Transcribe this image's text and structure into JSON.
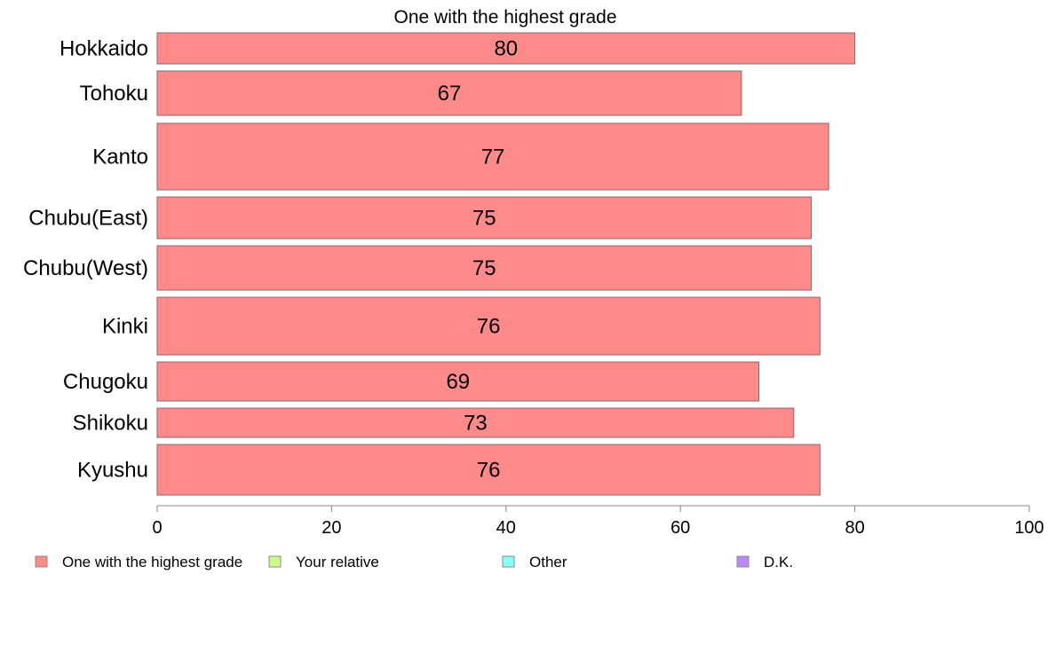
{
  "chart_data": {
    "type": "bar",
    "orientation": "horizontal",
    "title": "One with the highest grade",
    "categories": [
      "Hokkaido",
      "Tohoku",
      "Kanto",
      "Chubu(East)",
      "Chubu(West)",
      "Kinki",
      "Chugoku",
      "Shikoku",
      "Kyushu"
    ],
    "series": [
      {
        "name": "One with the highest grade",
        "values": [
          80,
          67,
          77,
          75,
          75,
          76,
          69,
          73,
          76
        ],
        "color": "#ff8a8a"
      },
      {
        "name": "Your relative",
        "values": [
          0,
          0,
          0,
          0,
          0,
          0,
          0,
          0,
          0
        ],
        "color": "#ccff88"
      },
      {
        "name": "Other",
        "values": [
          0,
          0,
          0,
          0,
          0,
          0,
          0,
          0,
          0
        ],
        "color": "#88ffff"
      },
      {
        "name": "D.K.",
        "values": [
          0,
          0,
          0,
          0,
          0,
          0,
          0,
          0,
          0
        ],
        "color": "#bb88ff"
      }
    ],
    "data_labels": [
      "80",
      "67",
      "77",
      "75",
      "75",
      "76",
      "69",
      "73",
      "76"
    ],
    "xlim": [
      0,
      100
    ],
    "xticks": [
      0,
      20,
      40,
      60,
      80,
      100
    ],
    "xtick_labels": [
      "0",
      "20",
      "40",
      "60",
      "80",
      "100"
    ],
    "grid": false,
    "legend_position": "bottom"
  }
}
